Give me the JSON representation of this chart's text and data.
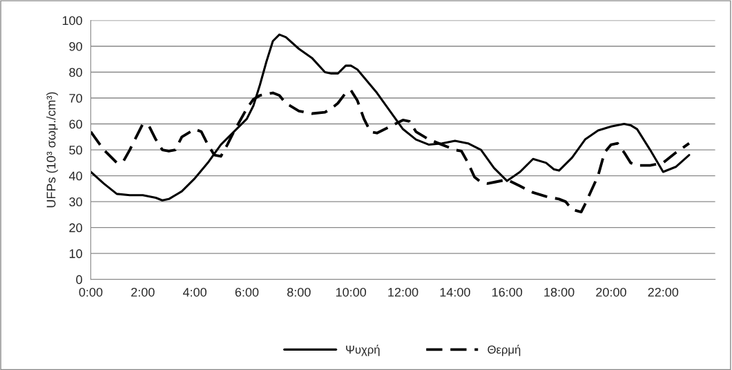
{
  "chart_data": {
    "type": "line",
    "ylabel": "UFPs (10³ σωμ./cm³)",
    "xlim": [
      0,
      24
    ],
    "xticks": [
      {
        "value": 0,
        "label": "0:00"
      },
      {
        "value": 2,
        "label": "2:00"
      },
      {
        "value": 4,
        "label": "4:00"
      },
      {
        "value": 6,
        "label": "6:00"
      },
      {
        "value": 8,
        "label": "8:00"
      },
      {
        "value": 10,
        "label": "10:00"
      },
      {
        "value": 12,
        "label": "12:00"
      },
      {
        "value": 14,
        "label": "14:00"
      },
      {
        "value": 16,
        "label": "16:00"
      },
      {
        "value": 18,
        "label": "18:00"
      },
      {
        "value": 20,
        "label": "20:00"
      },
      {
        "value": 22,
        "label": "22:00"
      }
    ],
    "ylim": [
      0,
      100
    ],
    "yticks": [
      0,
      10,
      20,
      30,
      40,
      50,
      60,
      70,
      80,
      90,
      100
    ],
    "grid": "y",
    "legend": "bottom",
    "marker": "none",
    "series": [
      {
        "name": "Ψυχρή",
        "color": "#000000",
        "line_style": "solid",
        "x": [
          0,
          0.5,
          1,
          1.5,
          2,
          2.5,
          2.75,
          3,
          3.5,
          4,
          4.5,
          5,
          5.5,
          6,
          6.25,
          6.5,
          6.75,
          7,
          7.25,
          7.5,
          8,
          8.5,
          9,
          9.25,
          9.5,
          9.8,
          10,
          10.25,
          10.5,
          11,
          11.5,
          12,
          12.5,
          13,
          13.5,
          14,
          14.5,
          15,
          15.5,
          16,
          16.5,
          17,
          17.5,
          17.8,
          18,
          18.5,
          19,
          19.5,
          20,
          20.5,
          20.75,
          21,
          21.5,
          22,
          22.5,
          23
        ],
        "values": [
          41.5,
          37,
          33,
          32.5,
          32.5,
          31.5,
          30.5,
          31,
          34,
          39,
          45,
          52,
          57,
          62,
          67,
          75,
          84,
          92,
          94.5,
          93.5,
          89,
          85.5,
          80,
          79.5,
          79.5,
          82.5,
          82.5,
          81,
          78,
          72,
          65,
          58,
          54,
          52,
          52.5,
          53.5,
          52.5,
          50,
          43,
          38,
          41.5,
          46.5,
          45,
          42.5,
          42,
          47,
          54,
          57.5,
          59,
          60,
          59.5,
          58,
          50,
          41.5,
          43.5,
          48
        ]
      },
      {
        "name": "Θερμή",
        "color": "#000000",
        "line_style": "dashed",
        "x": [
          0,
          0.5,
          1,
          1.25,
          1.5,
          2,
          2.25,
          2.5,
          2.75,
          3,
          3.25,
          3.5,
          4,
          4.25,
          4.5,
          4.75,
          5,
          5.25,
          5.5,
          6,
          6.25,
          6.5,
          7,
          7.25,
          7.5,
          8,
          8.5,
          9,
          9.25,
          9.5,
          9.8,
          10,
          10.25,
          10.5,
          10.75,
          11,
          11.5,
          12,
          12.25,
          12.5,
          13,
          13.5,
          14,
          14.25,
          14.5,
          14.75,
          15,
          15.25,
          15.5,
          16,
          16.5,
          17,
          17.5,
          18,
          18.25,
          18.5,
          18.85,
          19,
          19.5,
          19.75,
          20,
          20.25,
          20.5,
          20.75,
          21,
          21.5,
          22,
          22.5,
          23
        ],
        "values": [
          57,
          50,
          45,
          45.5,
          50,
          60,
          59,
          54,
          50,
          49.5,
          50,
          55,
          58,
          57,
          52,
          48,
          47.5,
          52,
          57,
          66,
          69.5,
          71,
          72,
          71,
          68,
          65,
          64,
          64.5,
          66,
          68,
          72,
          73,
          69,
          62,
          57,
          56.5,
          59,
          61.5,
          61,
          57,
          54,
          52,
          50,
          49.5,
          45,
          39.5,
          37.5,
          37,
          37.5,
          38.5,
          36,
          33.5,
          32,
          31,
          30,
          27,
          26,
          29,
          40,
          49,
          52,
          52.5,
          49,
          45,
          44,
          44,
          45,
          49,
          52.5
        ]
      }
    ]
  }
}
